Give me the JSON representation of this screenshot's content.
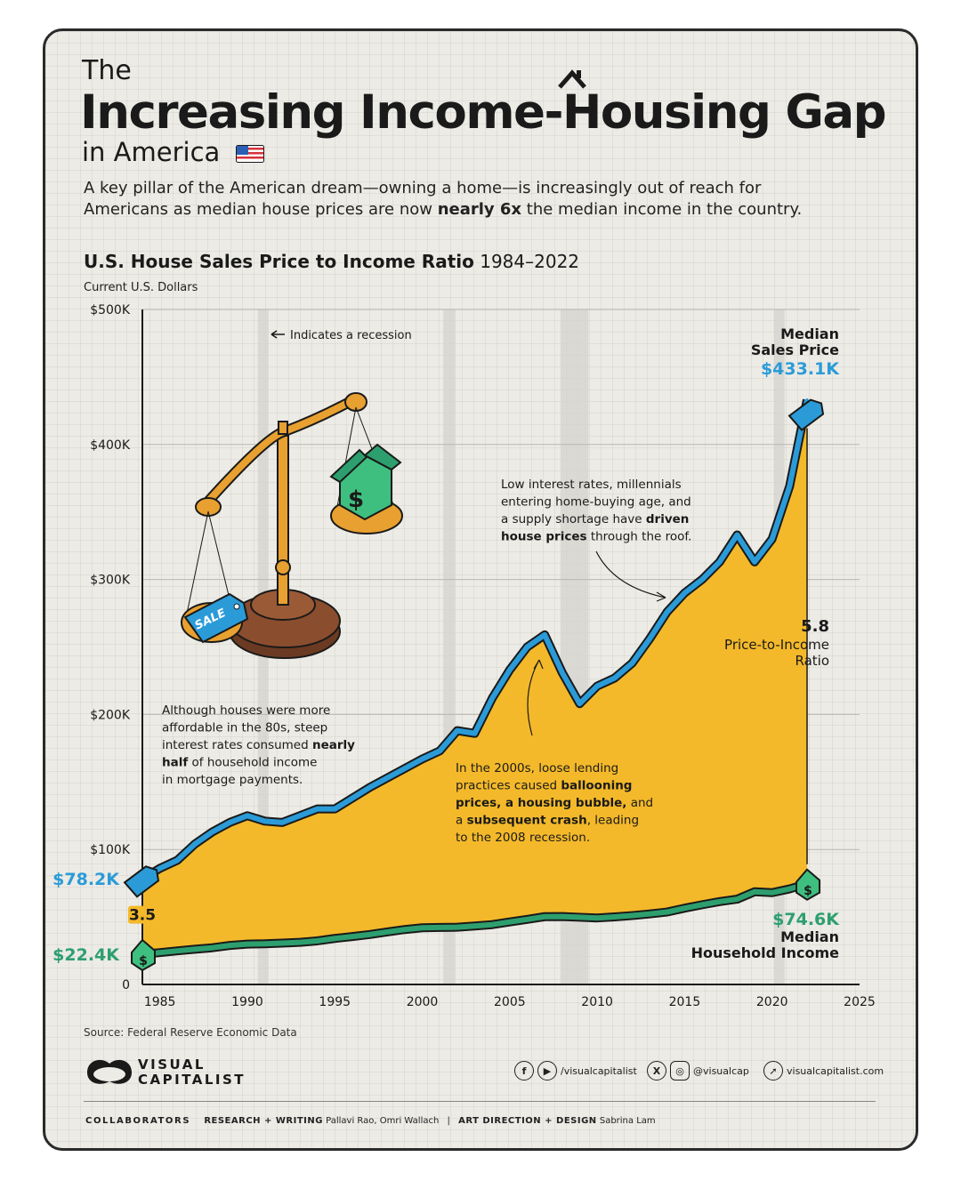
{
  "header": {
    "pre_title": "The",
    "title": "Increasing Income-Housing Gap",
    "sub_title": "in America",
    "intro_1": "A key pillar of the American dream—owning a home—is increasingly out of reach for Americans as median house prices are now ",
    "intro_bold": "nearly 6x",
    "intro_2": " the median income in the country."
  },
  "chart_head": {
    "title_bold": "U.S. House Sales Price to Income Ratio",
    "title_years": "1984–2022",
    "units": "Current U.S. Dollars"
  },
  "colors": {
    "price_line": "#2b9bd8",
    "area_fill": "#f4b92a",
    "income_line": "#2d9f6e",
    "recession": "#d4d3cd",
    "text": "#1a1a1a"
  },
  "icons": [
    "us-flag-icon",
    "scale-illustration",
    "price-tag-icon",
    "house-icon",
    "facebook-icon",
    "youtube-icon",
    "x-icon",
    "instagram-icon",
    "cursor-icon",
    "visual-capitalist-logo"
  ],
  "chart_data": {
    "type": "area",
    "title": "U.S. House Sales Price to Income Ratio 1984–2022",
    "ylabel": "Current U.S. Dollars",
    "x": [
      1984,
      1985,
      1986,
      1987,
      1988,
      1989,
      1990,
      1991,
      1992,
      1993,
      1994,
      1995,
      1996,
      1997,
      1998,
      1999,
      2000,
      2001,
      2002,
      2003,
      2004,
      2005,
      2006,
      2007,
      2008,
      2009,
      2010,
      2011,
      2012,
      2013,
      2014,
      2015,
      2016,
      2017,
      2018,
      2019,
      2020,
      2021,
      2022
    ],
    "xlim": [
      1984,
      2025
    ],
    "xticks": [
      1985,
      1990,
      1995,
      2000,
      2005,
      2010,
      2015,
      2020,
      2025
    ],
    "ylim": [
      0,
      500000
    ],
    "yticks": [
      {
        "value": 0,
        "label": "0"
      },
      {
        "value": 100000,
        "label": "$100K"
      },
      {
        "value": 200000,
        "label": "$200K"
      },
      {
        "value": 300000,
        "label": "$300K"
      },
      {
        "value": 400000,
        "label": "$400K"
      },
      {
        "value": 500000,
        "label": "$500K"
      }
    ],
    "grid": true,
    "series": [
      {
        "name": "Median Sales Price",
        "values": [
          78200,
          86000,
          92000,
          104000,
          113000,
          120000,
          125000,
          121000,
          120000,
          125000,
          130000,
          130000,
          138000,
          146000,
          153000,
          160000,
          167000,
          173000,
          188000,
          186000,
          212000,
          233000,
          250000,
          259000,
          231000,
          208000,
          221000,
          227000,
          238000,
          256000,
          276000,
          290000,
          300000,
          313000,
          333000,
          313000,
          330000,
          369000,
          433100
        ]
      },
      {
        "name": "Median Household Income",
        "values": [
          22400,
          23600,
          24900,
          26100,
          27200,
          28900,
          29900,
          30100,
          30600,
          31200,
          32300,
          34100,
          35500,
          37000,
          38900,
          40700,
          41990,
          42230,
          42410,
          43320,
          44330,
          46330,
          48200,
          50230,
          50300,
          49780,
          49280,
          50050,
          51020,
          52250,
          53660,
          56520,
          59040,
          61370,
          63180,
          68700,
          68010,
          70780,
          74600
        ]
      }
    ],
    "recessions": [
      [
        1990.6,
        1991.2
      ],
      [
        2001.2,
        2001.9
      ],
      [
        2007.9,
        2009.5
      ],
      [
        2020.1,
        2020.4
      ]
    ],
    "annotations": {
      "recession_note": "Indicates a recession",
      "start_price": "$78.2K",
      "start_income": "$22.4K",
      "start_ratio": "3.5",
      "end_price_label_1": "Median",
      "end_price_label_2": "Sales Price",
      "end_price": "$433.1K",
      "end_ratio": "5.8",
      "end_ratio_label_1": "Price-to-Income",
      "end_ratio_label_2": "Ratio",
      "end_income": "$74.6K",
      "end_income_label_1": "Median",
      "end_income_label_2": "Household Income",
      "sale_tag": "SALE",
      "note_80s": [
        [
          {
            "t": "Although houses were more",
            "b": false
          }
        ],
        [
          {
            "t": "affordable in the 80s, steep",
            "b": false
          }
        ],
        [
          {
            "t": "interest rates consumed ",
            "b": false
          },
          {
            "t": "nearly",
            "b": true
          }
        ],
        [
          {
            "t": "half",
            "b": true
          },
          {
            "t": " of household income",
            "b": false
          }
        ],
        [
          {
            "t": "in mortgage payments.",
            "b": false
          }
        ]
      ],
      "note_2000s": [
        [
          {
            "t": "In the 2000s, loose lending",
            "b": false
          }
        ],
        [
          {
            "t": "practices caused ",
            "b": false
          },
          {
            "t": "ballooning",
            "b": true
          }
        ],
        [
          {
            "t": "prices, a housing bubble,",
            "b": true
          },
          {
            "t": " and",
            "b": false
          }
        ],
        [
          {
            "t": "a ",
            "b": false
          },
          {
            "t": "subsequent crash",
            "b": true
          },
          {
            "t": ", leading",
            "b": false
          }
        ],
        [
          {
            "t": "to the 2008 recession.",
            "b": false
          }
        ]
      ],
      "note_recent": [
        [
          {
            "t": "Low interest rates, millennials",
            "b": false
          }
        ],
        [
          {
            "t": "entering home-buying age, and",
            "b": false
          }
        ],
        [
          {
            "t": "a supply shortage have ",
            "b": false
          },
          {
            "t": "driven",
            "b": true
          }
        ],
        [
          {
            "t": "house prices",
            "b": true
          },
          {
            "t": " through the roof.",
            "b": false
          }
        ]
      ]
    }
  },
  "footer": {
    "source": "Source: Federal Reserve Economic Data",
    "logo_1": "VISUAL",
    "logo_2": "CAPITALIST",
    "social_1": "/visualcapitalist",
    "social_2": "@visualcap",
    "social_3": "visualcapitalist.com",
    "collaborators": "COLLABORATORS",
    "research_label": "RESEARCH + WRITING",
    "research_names": "Pallavi Rao, Omri Wallach",
    "separator": "|",
    "design_label": "ART DIRECTION + DESIGN",
    "design_names": "Sabrina Lam"
  }
}
